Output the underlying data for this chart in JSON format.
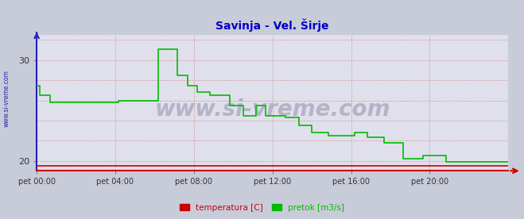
{
  "title": "Savinja - Vel. Širje",
  "title_color": "#0000cc",
  "bg_color": "#c8ccd8",
  "plot_bg_color": "#e0e0ec",
  "ylabel_left": "",
  "xlabel": "",
  "ylim": [
    19.0,
    32.5
  ],
  "xlim": [
    0,
    288
  ],
  "yticks": [
    20,
    30
  ],
  "xtick_labels": [
    "pet 00:00",
    "pet 04:00",
    "pet 08:00",
    "pet 12:00",
    "pet 16:00",
    "pet 20:00"
  ],
  "xtick_positions": [
    0,
    48,
    96,
    144,
    192,
    240
  ],
  "watermark": "www.si-vreme.com",
  "watermark_color": "#9090aa",
  "watermark_fontsize": 20,
  "side_text": "www.si-vreme.com",
  "side_text_color": "#2222bb",
  "pretok_color": "#00bb00",
  "temperatura_color": "#cc0000",
  "legend_temperatura": "temperatura [C]",
  "legend_pretok": "pretok [m3/s]",
  "pretok_data": [
    [
      0,
      27.5
    ],
    [
      2,
      26.5
    ],
    [
      6,
      26.5
    ],
    [
      8,
      25.8
    ],
    [
      48,
      25.8
    ],
    [
      50,
      26.0
    ],
    [
      72,
      26.0
    ],
    [
      74,
      31.1
    ],
    [
      84,
      31.1
    ],
    [
      86,
      28.5
    ],
    [
      90,
      28.5
    ],
    [
      92,
      27.5
    ],
    [
      96,
      27.5
    ],
    [
      98,
      26.8
    ],
    [
      104,
      26.8
    ],
    [
      106,
      26.5
    ],
    [
      110,
      26.5
    ],
    [
      112,
      26.5
    ],
    [
      116,
      26.5
    ],
    [
      118,
      25.5
    ],
    [
      124,
      25.5
    ],
    [
      126,
      24.5
    ],
    [
      132,
      24.5
    ],
    [
      134,
      25.5
    ],
    [
      138,
      25.5
    ],
    [
      140,
      24.5
    ],
    [
      144,
      24.5
    ],
    [
      150,
      24.5
    ],
    [
      152,
      24.3
    ],
    [
      158,
      24.3
    ],
    [
      160,
      23.5
    ],
    [
      166,
      23.5
    ],
    [
      168,
      22.8
    ],
    [
      176,
      22.8
    ],
    [
      178,
      22.5
    ],
    [
      192,
      22.5
    ],
    [
      194,
      22.8
    ],
    [
      200,
      22.8
    ],
    [
      202,
      22.3
    ],
    [
      210,
      22.3
    ],
    [
      212,
      21.8
    ],
    [
      222,
      21.8
    ],
    [
      224,
      20.2
    ],
    [
      234,
      20.2
    ],
    [
      236,
      20.5
    ],
    [
      248,
      20.5
    ],
    [
      250,
      19.9
    ],
    [
      288,
      19.9
    ]
  ],
  "temperatura_data": [
    [
      0,
      19.5
    ],
    [
      288,
      19.5
    ]
  ]
}
